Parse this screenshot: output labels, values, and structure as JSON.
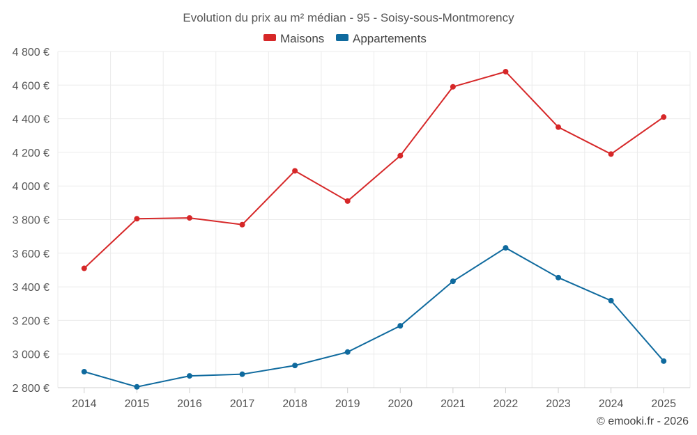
{
  "chart_data": {
    "type": "line",
    "title": "Evolution du prix au m² médian - 95 - Soisy-sous-Montmorency",
    "categories": [
      "2014",
      "2015",
      "2016",
      "2017",
      "2018",
      "2019",
      "2020",
      "2021",
      "2022",
      "2023",
      "2024",
      "2025"
    ],
    "series": [
      {
        "name": "Maisons",
        "color": "#d62728",
        "values": [
          3510,
          3805,
          3810,
          3770,
          4090,
          3910,
          4180,
          4590,
          4680,
          4350,
          4190,
          4410
        ]
      },
      {
        "name": "Appartements",
        "color": "#0f6a9e",
        "values": [
          2895,
          2805,
          2870,
          2880,
          2932,
          3012,
          3168,
          3433,
          3632,
          3455,
          3318,
          2958
        ]
      }
    ],
    "ylim": [
      2800,
      4800
    ],
    "yticks": [
      2800,
      3000,
      3200,
      3400,
      3600,
      3800,
      4000,
      4200,
      4400,
      4600,
      4800
    ],
    "ytick_labels": [
      "2 800 €",
      "3 000 €",
      "3 200 €",
      "3 400 €",
      "3 600 €",
      "3 800 €",
      "4 000 €",
      "4 200 €",
      "4 400 €",
      "4 600 €",
      "4 800 €"
    ],
    "xlabel": "",
    "ylabel": "",
    "grid": true,
    "legend_position": "top-center"
  },
  "credit": "© emooki.fr - 2026"
}
